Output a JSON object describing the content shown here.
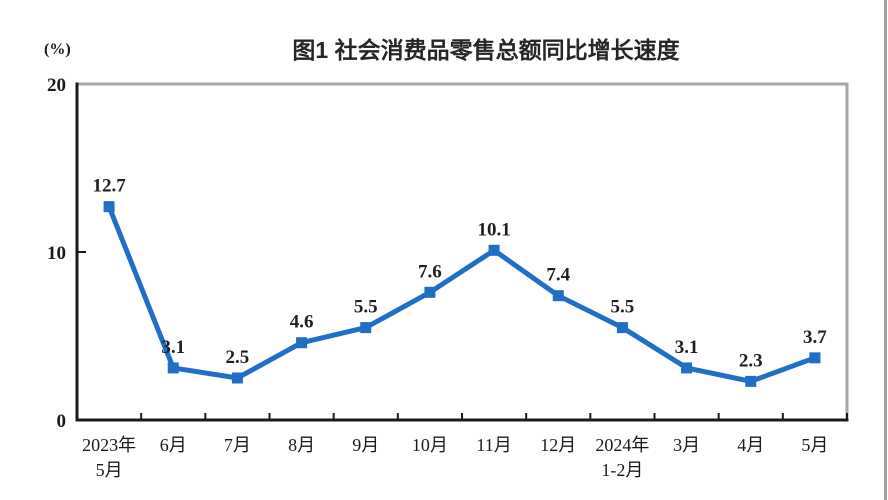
{
  "page": {
    "title": "图1 社会消费品零售总额同比增长速度",
    "unit_label": "(%)"
  },
  "chart_data": {
    "type": "line",
    "title": "图1 社会消费品零售总额同比增长速度",
    "unit_label": "(%)",
    "categories": [
      [
        "2023年",
        "5月"
      ],
      [
        "6月"
      ],
      [
        "7月"
      ],
      [
        "8月"
      ],
      [
        "9月"
      ],
      [
        "10月"
      ],
      [
        "11月"
      ],
      [
        "12月"
      ],
      [
        "2024年",
        "1-2月"
      ],
      [
        "3月"
      ],
      [
        "4月"
      ],
      [
        "5月"
      ]
    ],
    "values": [
      12.7,
      3.1,
      2.5,
      4.6,
      5.5,
      7.6,
      10.1,
      7.4,
      5.5,
      3.1,
      2.3,
      3.7
    ],
    "xlabel": "",
    "ylabel": "(%)",
    "ylim": [
      0,
      20
    ],
    "yticks": [
      0,
      10,
      20
    ],
    "grid": false,
    "legend": false,
    "marker": "square",
    "colors": {
      "line": "#1f6fc6",
      "axis": "#1a1a1a",
      "frame": "#a6a6a6",
      "label_text": "#1f1f1f"
    }
  }
}
